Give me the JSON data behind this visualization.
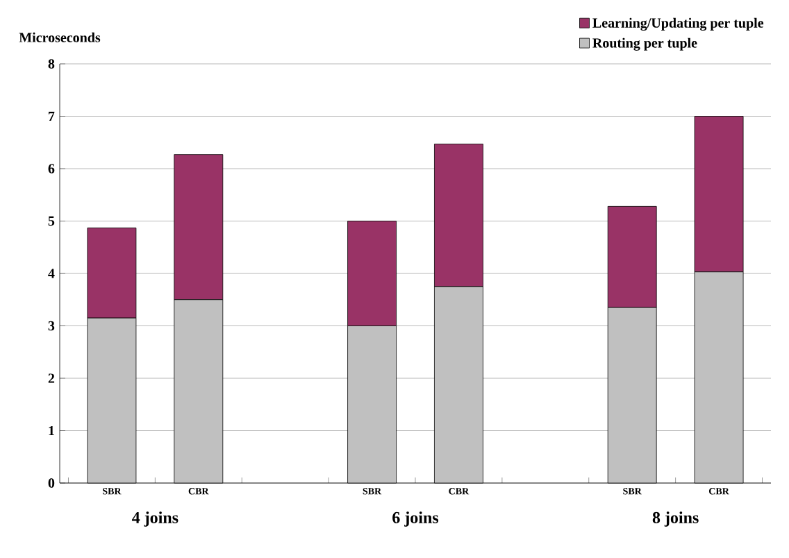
{
  "chart_data": {
    "type": "bar",
    "stacked": true,
    "ylabel": "Microseconds",
    "categories": [
      "SBR",
      "CBR",
      null,
      "SBR",
      "CBR",
      null,
      "SBR",
      "CBR"
    ],
    "series": [
      {
        "name": "Routing per tuple",
        "color": "#c0c0c0",
        "values": [
          3.15,
          3.5,
          null,
          3.0,
          3.75,
          null,
          3.35,
          4.03
        ]
      },
      {
        "name": "Learning/Updating per tuple",
        "color": "#993366",
        "values": [
          1.72,
          2.77,
          null,
          2.0,
          2.72,
          null,
          1.93,
          2.97
        ]
      }
    ],
    "ylim": [
      0,
      8
    ],
    "yticks": [
      0,
      1,
      2,
      3,
      4,
      5,
      6,
      7,
      8
    ],
    "grid": "y",
    "legend": "top right",
    "annotations": [
      "4 joins",
      "6 joins",
      "8 joins"
    ]
  }
}
